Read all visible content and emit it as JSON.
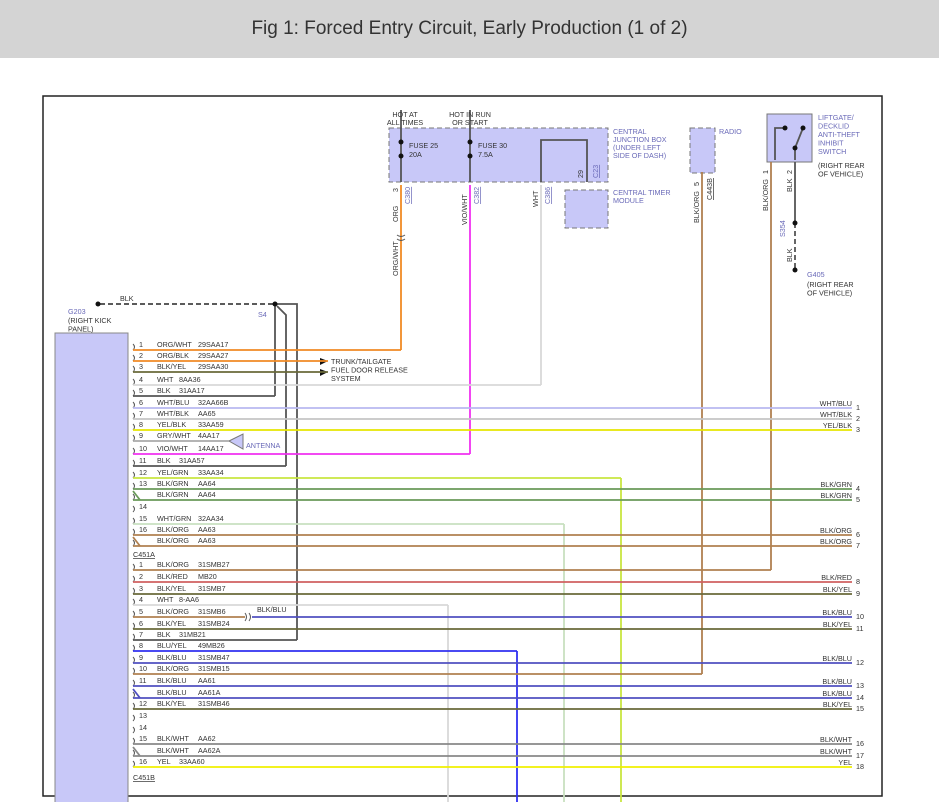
{
  "header": {
    "title": "Fig 1: Forced Entry Circuit, Early Production (1 of 2)"
  },
  "wire_colors": {
    "ORG": "#f08a24",
    "ORG/WHT": "#f08a24",
    "ORG/BLK": "#f08a24",
    "BLK/YEL": "#6a6a3a",
    "WHT": "#d8d8d8",
    "BLK": "#555555",
    "WHT/BLU": "#b8b8f0",
    "WHT/BLK": "#c4c4c4",
    "YEL/BLK": "#e6e600",
    "GRY/WHT": "#aaaaaa",
    "VIO/WHT": "#f030f0",
    "YEL/GRN": "#c8e640",
    "BLK/GRN": "#6a9a5a",
    "WHT/GRN": "#c8e0c0",
    "BLK/ORG": "#b08050",
    "BLK/RED": "#d06060",
    "BLK/BLU": "#5050c0",
    "BLU/YEL": "#3030f0",
    "BLK/WHT": "#888888",
    "YEL": "#f0f000"
  },
  "power": {
    "hot_at_all_times": [
      "HOT AT",
      "ALL TIMES"
    ],
    "hot_in_run": [
      "HOT IN RUN",
      "OR START"
    ],
    "fuse25": {
      "name": "FUSE 25",
      "rating": "20A"
    },
    "fuse30": {
      "name": "FUSE 30",
      "rating": "7.5A"
    }
  },
  "cjb": {
    "label": [
      "CENTRAL",
      "JUNCTION BOX",
      "(UNDER LEFT",
      "SIDE OF DASH)"
    ],
    "pin": "29",
    "connector": "C23"
  },
  "ctm": {
    "label": [
      "CENTRAL TIMER",
      "MODULE"
    ]
  },
  "radio": {
    "label": "RADIO",
    "pin": "5",
    "connector": "C443B",
    "wire": "BLK/ORG"
  },
  "liftgate": {
    "label": [
      "LIFTGATE/",
      "DECKLID",
      "ANTI-THEFT",
      "INHIBIT",
      "SWITCH"
    ],
    "location": [
      "(RIGHT REAR",
      "OF VEHICLE)"
    ],
    "pin1": "1",
    "pin2": "2",
    "wire1": "BLK/ORG",
    "wire2": "BLK",
    "splice": "S354",
    "wire3": "BLK",
    "ground": "G405",
    "ground_location": [
      "(RIGHT REAR",
      "OF VEHICLE)"
    ]
  },
  "verticals": {
    "c380": {
      "pin": "3",
      "connector": "C380",
      "wire": "ORG",
      "wire2": "ORG/WHT"
    },
    "c382": {
      "connector": "C382",
      "wire": "VIO/WHT"
    },
    "c386": {
      "connector": "C386",
      "wire": "WHT"
    }
  },
  "ground_g203": {
    "wire": "BLK",
    "name": "G203",
    "location": [
      "(RIGHT KICK",
      "PANEL)"
    ],
    "splice": "S4"
  },
  "trunk_label": [
    "TRUNK/TAILGATE",
    "FUEL DOOR RELEASE",
    "SYSTEM"
  ],
  "antenna_label": "ANTENNA",
  "splice_label": "BLK/BLU",
  "c203_rows": [
    {
      "pin": "1",
      "color": "ORG/WHT",
      "circuit": "29SAA17"
    },
    {
      "pin": "2",
      "color": "ORG/BLK",
      "circuit": "29SAA27"
    },
    {
      "pin": "3",
      "color": "BLK/YEL",
      "circuit": "29SAA30"
    },
    {
      "pin": "4",
      "color": "WHT",
      "circuit": "8AA36"
    },
    {
      "pin": "5",
      "color": "BLK",
      "circuit": "31AA17"
    },
    {
      "pin": "6",
      "color": "WHT/BLU",
      "circuit": "32AA66B"
    },
    {
      "pin": "7",
      "color": "WHT/BLK",
      "circuit": "AA65"
    },
    {
      "pin": "8",
      "color": "YEL/BLK",
      "circuit": "33AA59"
    },
    {
      "pin": "9",
      "color": "GRY/WHT",
      "circuit": "4AA17"
    },
    {
      "pin": "10",
      "color": "VIO/WHT",
      "circuit": "14AA17"
    },
    {
      "pin": "11",
      "color": "BLK",
      "circuit": "31AA57"
    },
    {
      "pin": "12",
      "color": "YEL/GRN",
      "circuit": "33AA34"
    },
    {
      "pin": "13",
      "color": "BLK/GRN",
      "circuit": "AA64"
    },
    {
      "pin": "",
      "color": "BLK/GRN",
      "circuit": "AA64"
    },
    {
      "pin": "14",
      "color": "",
      "circuit": ""
    },
    {
      "pin": "15",
      "color": "WHT/GRN",
      "circuit": "32AA34"
    },
    {
      "pin": "16",
      "color": "BLK/ORG",
      "circuit": "AA63"
    },
    {
      "pin": "",
      "color": "BLK/ORG",
      "circuit": "AA63"
    }
  ],
  "c451a_label": "C451A",
  "c451a_rows": [
    {
      "pin": "1",
      "color": "BLK/ORG",
      "circuit": "31SMB27"
    },
    {
      "pin": "2",
      "color": "BLK/RED",
      "circuit": "MB20"
    },
    {
      "pin": "3",
      "color": "BLK/YEL",
      "circuit": "31SMB7"
    },
    {
      "pin": "4",
      "color": "WHT",
      "circuit": "8-AA6"
    },
    {
      "pin": "5",
      "color": "BLK/ORG",
      "circuit": "31SMB6"
    },
    {
      "pin": "6",
      "color": "BLK/YEL",
      "circuit": "31SMB24"
    },
    {
      "pin": "7",
      "color": "BLK",
      "circuit": "31MB21"
    },
    {
      "pin": "8",
      "color": "BLU/YEL",
      "circuit": "49MB26"
    },
    {
      "pin": "9",
      "color": "BLK/BLU",
      "circuit": "31SMB47"
    },
    {
      "pin": "10",
      "color": "BLK/ORG",
      "circuit": "31SMB15"
    },
    {
      "pin": "11",
      "color": "BLK/BLU",
      "circuit": "AA61"
    },
    {
      "pin": "",
      "color": "BLK/BLU",
      "circuit": "AA61A"
    },
    {
      "pin": "12",
      "color": "BLK/YEL",
      "circuit": "31SMB46"
    },
    {
      "pin": "13",
      "color": "",
      "circuit": ""
    },
    {
      "pin": "14",
      "color": "",
      "circuit": ""
    },
    {
      "pin": "15",
      "color": "BLK/WHT",
      "circuit": "AA62"
    },
    {
      "pin": "",
      "color": "BLK/WHT",
      "circuit": "AA62A"
    },
    {
      "pin": "16",
      "color": "YEL",
      "circuit": "33AA60"
    }
  ],
  "c451b_label": "C451B",
  "right_labels": [
    {
      "color": "WHT/BLU",
      "pin": "1"
    },
    {
      "color": "WHT/BLK",
      "pin": "2"
    },
    {
      "color": "YEL/BLK",
      "pin": "3"
    },
    {
      "color": "BLK/GRN",
      "pin": "4"
    },
    {
      "color": "BLK/GRN",
      "pin": "5"
    },
    {
      "color": "BLK/ORG",
      "pin": "6"
    },
    {
      "color": "BLK/ORG",
      "pin": "7"
    },
    {
      "color": "BLK/RED",
      "pin": "8"
    },
    {
      "color": "BLK/YEL",
      "pin": "9"
    },
    {
      "color": "BLK/BLU",
      "pin": "10"
    },
    {
      "color": "BLK/YEL",
      "pin": "11"
    },
    {
      "color": "BLK/BLU",
      "pin": "12"
    },
    {
      "color": "BLK/BLU",
      "pin": "13"
    },
    {
      "color": "BLK/BLU",
      "pin": "14"
    },
    {
      "color": "BLK/YEL",
      "pin": "15"
    },
    {
      "color": "BLK/WHT",
      "pin": "16"
    },
    {
      "color": "BLK/WHT",
      "pin": "17"
    },
    {
      "color": "YEL",
      "pin": "18"
    }
  ]
}
